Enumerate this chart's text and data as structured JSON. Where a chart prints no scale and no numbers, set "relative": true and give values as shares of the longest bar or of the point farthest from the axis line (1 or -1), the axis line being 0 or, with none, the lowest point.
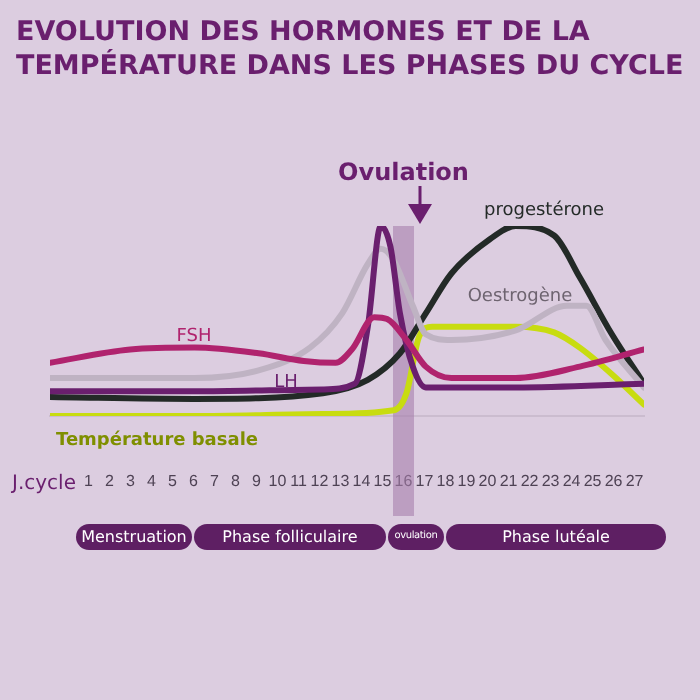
{
  "chart_data": {
    "type": "line",
    "title": "EVOLUTION DES HORMONES ET DE LA TEMPÉRATURE DANS LES PHASES DU CYCLE",
    "xlabel": "J.cycle",
    "relative": true,
    "xlim": [
      -0.83,
      27.45
    ],
    "xticks": [
      1,
      2,
      3,
      4,
      5,
      6,
      7,
      8,
      9,
      10,
      11,
      12,
      13,
      14,
      15,
      16,
      17,
      18,
      19,
      20,
      21,
      22,
      23,
      24,
      25,
      26,
      27
    ],
    "series": [
      {
        "name": "FSH",
        "color": "#b0236e",
        "x": [
          -0.83,
          2.99,
          6.05,
          9.1,
          11.25,
          12.77,
          13.54,
          14.61,
          15.22,
          16.14,
          17.06,
          18.28,
          21.34,
          24.39,
          27.45
        ],
        "values": [
          0.28,
          0.35,
          0.36,
          0.33,
          0.29,
          0.28,
          0.35,
          0.52,
          0.51,
          0.4,
          0.26,
          0.2,
          0.2,
          0.26,
          0.35
        ]
      },
      {
        "name": "LH",
        "color": "#6a1f6e",
        "x": [
          -0.83,
          6.05,
          12.16,
          13.69,
          14.3,
          14.92,
          15.38,
          15.83,
          16.44,
          17.06,
          21.34,
          27.45
        ],
        "values": [
          0.13,
          0.13,
          0.14,
          0.17,
          0.47,
          1,
          0.89,
          0.54,
          0.26,
          0.15,
          0.15,
          0.17
        ]
      },
      {
        "name": "Oestrogène",
        "color": "#bfb3c3",
        "x": [
          -0.83,
          6.05,
          9.1,
          11.55,
          13.08,
          14.3,
          14.92,
          15.53,
          16.44,
          17.06,
          18.28,
          21.34,
          23.78,
          24.7,
          25.62,
          27.45
        ],
        "values": [
          0.2,
          0.2,
          0.24,
          0.36,
          0.54,
          0.8,
          0.88,
          0.82,
          0.58,
          0.43,
          0.4,
          0.45,
          0.58,
          0.58,
          0.4,
          0.15
        ]
      },
      {
        "name": "progestérone",
        "color": "#232a27",
        "x": [
          -0.83,
          6.05,
          12.16,
          14.3,
          15.83,
          17.06,
          18.28,
          20.11,
          21.34,
          23.17,
          24.39,
          25.92,
          27.45
        ],
        "values": [
          0.1,
          0.09,
          0.12,
          0.19,
          0.33,
          0.54,
          0.75,
          0.93,
          1,
          0.95,
          0.73,
          0.43,
          0.17
        ]
      },
      {
        "name": "Température basale",
        "color": "#c8dc10",
        "x": [
          -0.83,
          6.05,
          12.16,
          15.53,
          16.14,
          16.75,
          17.36,
          21.34,
          23.17,
          24.39,
          25.92,
          27.45
        ],
        "values": [
          0,
          0,
          0.01,
          0.03,
          0.12,
          0.42,
          0.47,
          0.47,
          0.44,
          0.36,
          0.22,
          0.06
        ]
      }
    ],
    "bands": [
      {
        "axis": "x",
        "from": 15.5,
        "to": 16.5,
        "label": "Ovulation",
        "color": "#a67fab"
      }
    ],
    "annotations": [
      "Menstruation",
      "Phase folliculaire",
      "ovulation",
      "Phase lutéale"
    ],
    "grid": false,
    "legend": false,
    "marker": "none",
    "line_style": "solid"
  }
}
